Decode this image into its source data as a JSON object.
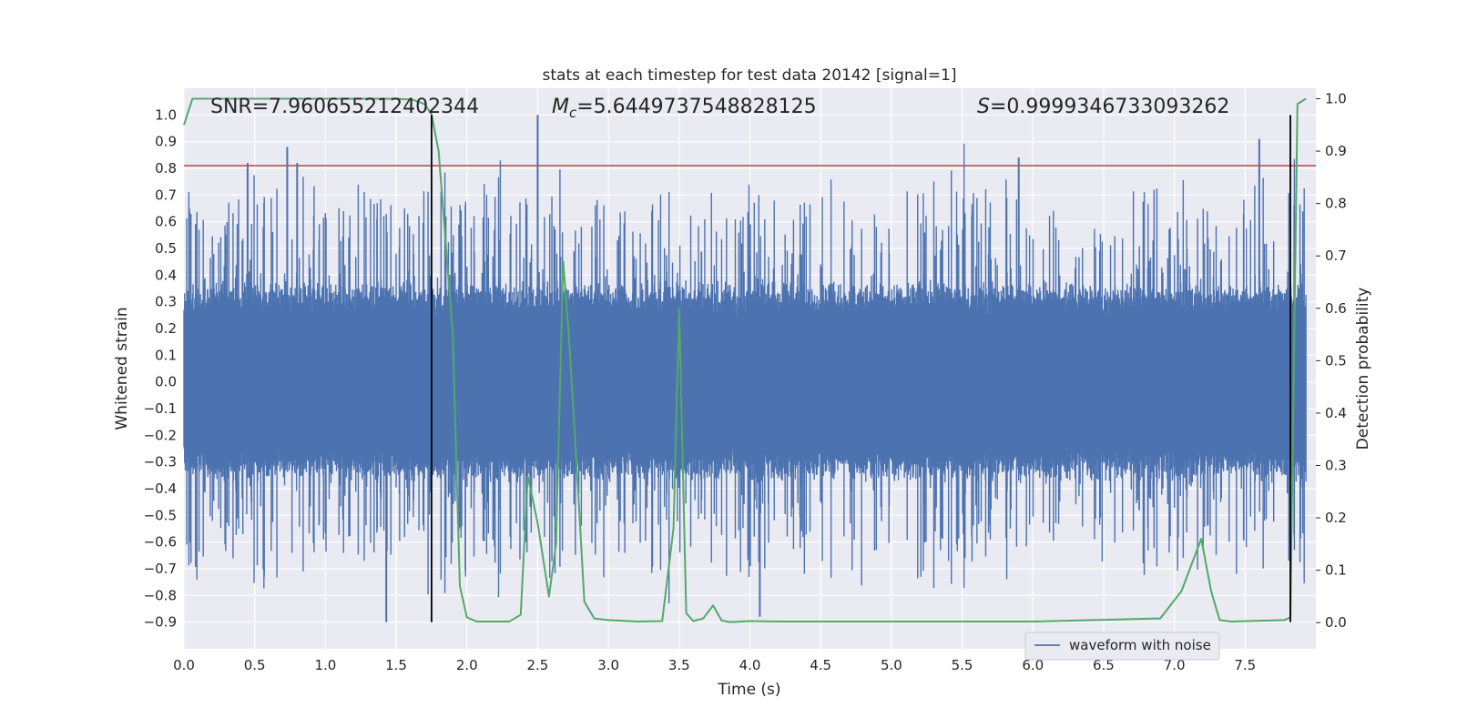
{
  "chart_data": {
    "type": "line",
    "title": "stats at each timestep for test data 20142 [signal=1]",
    "xlabel": "Time (s)",
    "ylabel_left": "Whitened strain",
    "ylabel_right": "Detection probability",
    "xlim": [
      0.0,
      8.0
    ],
    "ylim_left": [
      -1.0,
      1.1
    ],
    "ylim_right": [
      -0.05,
      1.02
    ],
    "xticks": [
      "0.0",
      "0.5",
      "1.0",
      "1.5",
      "2.0",
      "2.5",
      "3.0",
      "3.5",
      "4.0",
      "4.5",
      "5.0",
      "5.5",
      "6.0",
      "6.5",
      "7.0",
      "7.5"
    ],
    "yticks_left": [
      "1.0",
      "0.9",
      "0.8",
      "0.7",
      "0.6",
      "0.5",
      "0.4",
      "0.3",
      "0.2",
      "0.1",
      "0.0",
      "−0.1",
      "−0.2",
      "−0.3",
      "−0.4",
      "−0.5",
      "−0.6",
      "−0.7",
      "−0.8",
      "−0.9"
    ],
    "yticks_right": [
      "1.0",
      "0.9",
      "0.8",
      "0.7",
      "0.6",
      "0.5",
      "0.4",
      "0.3",
      "0.2",
      "0.1",
      "0.0"
    ],
    "threshold_left": 0.81,
    "vlines_x": [
      1.75,
      7.82
    ],
    "vline_ymin": -0.9,
    "vline_ymax": 1.0,
    "annotations": {
      "snr": "SNR=7.960655212402344",
      "mc_symbol": "M",
      "mc_sub": "c",
      "mc_value": "=5.6449737548828125",
      "s_symbol": "S",
      "s_value": "=0.9999346733093262"
    },
    "legend": "waveform with noise",
    "series": [
      {
        "name": "waveform with noise",
        "axis": "left",
        "description": "dense whitened strain noise, approx ±0.3 band with peaks to ±1.0",
        "notable_peaks": [
          {
            "x": 0.45,
            "y": 0.82
          },
          {
            "x": 0.73,
            "y": 0.88
          },
          {
            "x": 0.8,
            "y": 0.82
          },
          {
            "x": 2.5,
            "y": 1.0
          },
          {
            "x": 5.9,
            "y": 0.84
          },
          {
            "x": 7.6,
            "y": 0.91
          },
          {
            "x": 1.43,
            "y": -0.9
          },
          {
            "x": 4.07,
            "y": -0.88
          }
        ]
      },
      {
        "name": "Detection probability",
        "axis": "right",
        "x": [
          0.0,
          0.06,
          0.5,
          1.0,
          1.5,
          1.62,
          1.7,
          1.75,
          1.8,
          1.9,
          1.95,
          2.0,
          2.07,
          2.15,
          2.3,
          2.38,
          2.43,
          2.5,
          2.58,
          2.63,
          2.68,
          2.72,
          2.78,
          2.83,
          2.9,
          3.0,
          3.2,
          3.38,
          3.46,
          3.5,
          3.55,
          3.6,
          3.67,
          3.74,
          3.8,
          3.86,
          4.0,
          4.2,
          4.5,
          5.0,
          5.5,
          6.0,
          6.3,
          6.6,
          6.9,
          7.05,
          7.12,
          7.19,
          7.26,
          7.32,
          7.4,
          7.78,
          7.82,
          7.87,
          7.93
        ],
        "y": [
          0.95,
          1.0,
          1.0,
          1.0,
          1.0,
          0.998,
          0.99,
          0.97,
          0.9,
          0.55,
          0.07,
          0.01,
          0.002,
          0.002,
          0.002,
          0.015,
          0.28,
          0.19,
          0.05,
          0.15,
          0.69,
          0.55,
          0.28,
          0.04,
          0.008,
          0.005,
          0.002,
          0.003,
          0.18,
          0.6,
          0.018,
          0.003,
          0.008,
          0.033,
          0.004,
          0.001,
          0.003,
          0.002,
          0.002,
          0.002,
          0.002,
          0.002,
          0.004,
          0.006,
          0.008,
          0.06,
          0.11,
          0.16,
          0.06,
          0.005,
          0.002,
          0.005,
          0.01,
          0.99,
          1.0
        ]
      }
    ]
  }
}
